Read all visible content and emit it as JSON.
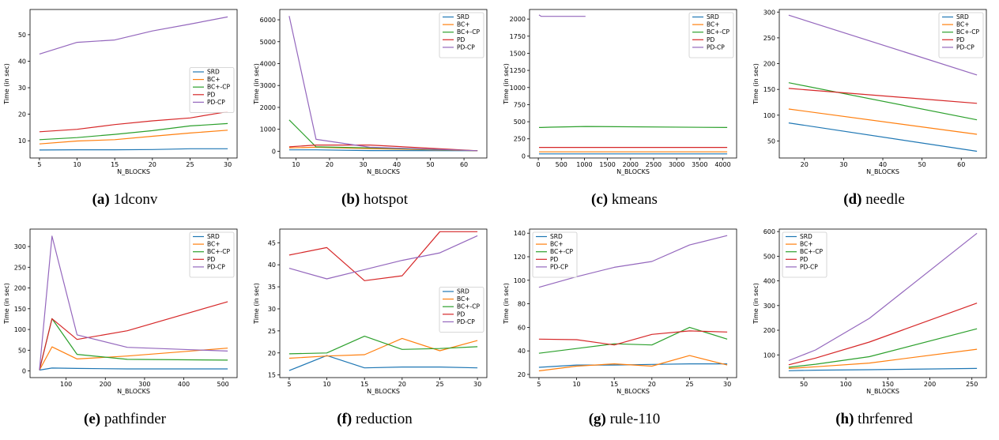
{
  "chart_data": [
    {
      "id": "a",
      "letter": "(a)",
      "name": "1dconv",
      "type": "line",
      "xlabel": "N_BLOCKS",
      "ylabel": "Time (in sec)",
      "xlim": [
        3.75,
        31.25
      ],
      "ylim": [
        3.5,
        59.5
      ],
      "xticks": [
        5,
        10,
        15,
        20,
        25,
        30
      ],
      "yticks": [
        10,
        20,
        30,
        40,
        50
      ],
      "legend": "center-right",
      "series": [
        {
          "name": "SRD",
          "color": "#1f77b4",
          "x": [
            5,
            10,
            15,
            20,
            25,
            30
          ],
          "y": [
            6.5,
            6.6,
            6.6,
            6.7,
            7.0,
            7.0
          ]
        },
        {
          "name": "BC+",
          "color": "#ff7f0e",
          "x": [
            5,
            10,
            15,
            20,
            25,
            30
          ],
          "y": [
            8.8,
            9.9,
            10.4,
            11.7,
            12.9,
            14.0
          ]
        },
        {
          "name": "BC+-CP",
          "color": "#2ca02c",
          "x": [
            5,
            10,
            15,
            20,
            25,
            30
          ],
          "y": [
            10.4,
            11.2,
            12.4,
            13.8,
            15.6,
            16.5
          ]
        },
        {
          "name": "PD",
          "color": "#d62728",
          "x": [
            5,
            10,
            15,
            20,
            25,
            30
          ],
          "y": [
            13.4,
            14.3,
            16.1,
            17.5,
            18.6,
            21.0
          ]
        },
        {
          "name": "PD-CP",
          "color": "#9467bd",
          "x": [
            5,
            10,
            15,
            20,
            25,
            30
          ],
          "y": [
            42.7,
            47.1,
            48.0,
            51.4,
            54.0,
            56.7
          ]
        }
      ]
    },
    {
      "id": "b",
      "letter": "(b)",
      "name": "hotspot",
      "type": "line",
      "xlabel": "N_BLOCKS",
      "ylabel": "Time (in sec)",
      "xlim": [
        5.2,
        66.8
      ],
      "ylim": [
        -310,
        6470
      ],
      "xticks": [
        10,
        20,
        30,
        40,
        50,
        60
      ],
      "yticks": [
        0,
        1000,
        2000,
        3000,
        4000,
        5000,
        6000
      ],
      "legend": "top-right",
      "series": [
        {
          "name": "SRD",
          "color": "#1f77b4",
          "x": [
            8,
            16,
            32,
            64
          ],
          "y": [
            60,
            60,
            30,
            20
          ]
        },
        {
          "name": "BC+",
          "color": "#ff7f0e",
          "x": [
            8,
            16,
            32,
            64
          ],
          "y": [
            150,
            180,
            120,
            20
          ]
        },
        {
          "name": "BC+-CP",
          "color": "#2ca02c",
          "x": [
            8,
            16,
            32,
            64
          ],
          "y": [
            1430,
            200,
            150,
            20
          ]
        },
        {
          "name": "PD",
          "color": "#d62728",
          "x": [
            8,
            16,
            32,
            64
          ],
          "y": [
            200,
            280,
            280,
            20
          ]
        },
        {
          "name": "PD-CP",
          "color": "#9467bd",
          "x": [
            8,
            16,
            32,
            64
          ],
          "y": [
            6170,
            540,
            180,
            20
          ]
        }
      ]
    },
    {
      "id": "c",
      "letter": "(c)",
      "name": "kmeans",
      "type": "line",
      "xlabel": "N_BLOCKS",
      "ylabel": "Time (in sec)",
      "xlim": [
        -190,
        4300
      ],
      "ylim": [
        -30,
        2140
      ],
      "xticks": [
        0,
        500,
        1000,
        1500,
        2000,
        2500,
        3000,
        3500,
        4000
      ],
      "yticks": [
        0,
        250,
        500,
        750,
        1000,
        1250,
        1500,
        1750,
        2000
      ],
      "legend": "top-right",
      "series": [
        {
          "name": "SRD",
          "color": "#1f77b4",
          "x": [
            16,
            64,
            256,
            1024,
            4096
          ],
          "y": [
            30,
            30,
            30,
            30,
            30
          ]
        },
        {
          "name": "BC+",
          "color": "#ff7f0e",
          "x": [
            16,
            64,
            256,
            1024,
            4096
          ],
          "y": [
            60,
            60,
            60,
            60,
            60
          ]
        },
        {
          "name": "BC+-CP",
          "color": "#2ca02c",
          "x": [
            16,
            64,
            256,
            1024,
            4096
          ],
          "y": [
            415,
            415,
            420,
            430,
            415
          ]
        },
        {
          "name": "PD",
          "color": "#d62728",
          "x": [
            16,
            64,
            256,
            1024,
            4096
          ],
          "y": [
            125,
            125,
            125,
            125,
            125
          ]
        },
        {
          "name": "PD-CP",
          "color": "#9467bd",
          "x": [
            16,
            64,
            256,
            1024
          ],
          "y": [
            2060,
            2040,
            2040,
            2040
          ]
        }
      ]
    },
    {
      "id": "d",
      "letter": "(d)",
      "name": "needle",
      "type": "line",
      "xlabel": "N_BLOCKS",
      "ylabel": "Time (in sec)",
      "xlim": [
        13.6,
        66.4
      ],
      "ylim": [
        17,
        305
      ],
      "xticks": [
        20,
        30,
        40,
        50,
        60
      ],
      "yticks": [
        50,
        100,
        150,
        200,
        250,
        300
      ],
      "legend": "top-right",
      "series": [
        {
          "name": "SRD",
          "color": "#1f77b4",
          "x": [
            16,
            64
          ],
          "y": [
            85,
            30
          ]
        },
        {
          "name": "BC+",
          "color": "#ff7f0e",
          "x": [
            16,
            64
          ],
          "y": [
            112,
            63
          ]
        },
        {
          "name": "BC+-CP",
          "color": "#2ca02c",
          "x": [
            16,
            64
          ],
          "y": [
            163,
            91
          ]
        },
        {
          "name": "PD",
          "color": "#d62728",
          "x": [
            16,
            64
          ],
          "y": [
            152,
            123
          ]
        },
        {
          "name": "PD-CP",
          "color": "#9467bd",
          "x": [
            16,
            64
          ],
          "y": [
            294,
            178
          ]
        }
      ]
    },
    {
      "id": "e",
      "letter": "(e)",
      "name": "pathfinder",
      "type": "line",
      "xlabel": "N_BLOCKS",
      "ylabel": "Time (in sec)",
      "xlim": [
        8,
        536
      ],
      "ylim": [
        -16,
        342
      ],
      "xticks": [
        100,
        200,
        300,
        400,
        500
      ],
      "yticks": [
        0,
        50,
        100,
        150,
        200,
        250,
        300
      ],
      "legend": "top-right",
      "series": [
        {
          "name": "SRD",
          "color": "#1f77b4",
          "x": [
            32,
            64,
            128,
            256,
            512
          ],
          "y": [
            2,
            7,
            6,
            5,
            5
          ]
        },
        {
          "name": "BC+",
          "color": "#ff7f0e",
          "x": [
            32,
            64,
            128,
            256,
            512
          ],
          "y": [
            2,
            58,
            29,
            36,
            55
          ]
        },
        {
          "name": "BC+-CP",
          "color": "#2ca02c",
          "x": [
            32,
            64,
            128,
            256,
            512
          ],
          "y": [
            2,
            126,
            40,
            28,
            26
          ]
        },
        {
          "name": "PD",
          "color": "#d62728",
          "x": [
            32,
            64,
            128,
            256,
            512
          ],
          "y": [
            2,
            126,
            76,
            97,
            167
          ]
        },
        {
          "name": "PD-CP",
          "color": "#9467bd",
          "x": [
            32,
            64,
            128,
            256,
            512
          ],
          "y": [
            2,
            325,
            87,
            57,
            48
          ]
        }
      ]
    },
    {
      "id": "f",
      "letter": "(f)",
      "name": "reduction",
      "type": "line",
      "xlabel": "N_BLOCKS",
      "ylabel": "Time (in sec)",
      "xlim": [
        3.75,
        31.25
      ],
      "ylim": [
        14.4,
        48.1
      ],
      "xticks": [
        5,
        10,
        15,
        20,
        25,
        30
      ],
      "yticks": [
        15,
        20,
        25,
        30,
        35,
        40,
        45
      ],
      "legend": "center-right",
      "series": [
        {
          "name": "SRD",
          "color": "#1f77b4",
          "x": [
            5,
            10,
            15,
            20,
            25,
            30
          ],
          "y": [
            16.0,
            19.4,
            16.6,
            16.8,
            16.8,
            16.6
          ]
        },
        {
          "name": "BC+",
          "color": "#ff7f0e",
          "x": [
            5,
            10,
            15,
            20,
            25,
            30
          ],
          "y": [
            18.8,
            19.3,
            19.6,
            23.3,
            20.5,
            22.8
          ]
        },
        {
          "name": "BC+-CP",
          "color": "#2ca02c",
          "x": [
            5,
            10,
            15,
            20,
            25,
            30
          ],
          "y": [
            19.8,
            20.0,
            23.8,
            20.8,
            21.0,
            21.4
          ]
        },
        {
          "name": "PD",
          "color": "#d62728",
          "x": [
            5,
            10,
            15,
            20,
            25,
            30
          ],
          "y": [
            42.2,
            43.9,
            36.4,
            37.5,
            47.5,
            47.5
          ]
        },
        {
          "name": "PD-CP",
          "color": "#9467bd",
          "x": [
            5,
            10,
            15,
            20,
            25,
            30
          ],
          "y": [
            39.2,
            36.8,
            38.9,
            41.0,
            42.7,
            46.6
          ]
        }
      ]
    },
    {
      "id": "g",
      "letter": "(g)",
      "name": "rule-110",
      "type": "line",
      "xlabel": "N_BLOCKS",
      "ylabel": "Time (in sec)",
      "xlim": [
        3.75,
        31.25
      ],
      "ylim": [
        17.3,
        143.5
      ],
      "xticks": [
        5,
        10,
        15,
        20,
        25,
        30
      ],
      "yticks": [
        20,
        40,
        60,
        80,
        100,
        120,
        140
      ],
      "legend": "top-left",
      "series": [
        {
          "name": "SRD",
          "color": "#1f77b4",
          "x": [
            5,
            10,
            15,
            20,
            25,
            30
          ],
          "y": [
            26,
            28,
            28,
            28.5,
            29,
            29
          ]
        },
        {
          "name": "BC+",
          "color": "#ff7f0e",
          "x": [
            5,
            10,
            15,
            20,
            25,
            30
          ],
          "y": [
            23,
            27,
            29,
            27,
            36,
            28
          ]
        },
        {
          "name": "BC+-CP",
          "color": "#2ca02c",
          "x": [
            5,
            10,
            15,
            20,
            25,
            30
          ],
          "y": [
            38,
            42,
            46,
            45,
            60,
            50
          ]
        },
        {
          "name": "PD",
          "color": "#d62728",
          "x": [
            5,
            10,
            15,
            20,
            25,
            30
          ],
          "y": [
            50,
            49.5,
            45,
            54,
            57,
            56
          ]
        },
        {
          "name": "PD-CP",
          "color": "#9467bd",
          "x": [
            5,
            10,
            15,
            20,
            25,
            30
          ],
          "y": [
            94,
            103,
            111,
            116,
            130,
            138
          ]
        }
      ]
    },
    {
      "id": "h",
      "letter": "(h)",
      "name": "thrfenred",
      "type": "line",
      "xlabel": "N_BLOCKS",
      "ylabel": "Time (in sec)",
      "xlim": [
        20.8,
        267.2
      ],
      "ylim": [
        8,
        610
      ],
      "xticks": [
        50,
        100,
        150,
        200,
        250
      ],
      "yticks": [
        100,
        200,
        300,
        400,
        500,
        600
      ],
      "legend": "top-left",
      "series": [
        {
          "name": "SRD",
          "color": "#1f77b4",
          "x": [
            32,
            64,
            128,
            256
          ],
          "y": [
            36,
            38,
            40,
            45
          ]
        },
        {
          "name": "BC+",
          "color": "#ff7f0e",
          "x": [
            32,
            64,
            128,
            256
          ],
          "y": [
            45,
            52,
            67,
            123
          ]
        },
        {
          "name": "BC+-CP",
          "color": "#2ca02c",
          "x": [
            32,
            64,
            128,
            256
          ],
          "y": [
            50,
            62,
            93,
            206
          ]
        },
        {
          "name": "PD",
          "color": "#d62728",
          "x": [
            32,
            64,
            128,
            256
          ],
          "y": [
            60,
            87,
            152,
            310
          ]
        },
        {
          "name": "PD-CP",
          "color": "#9467bd",
          "x": [
            32,
            64,
            128,
            256
          ],
          "y": [
            77,
            120,
            248,
            593
          ]
        }
      ]
    }
  ]
}
